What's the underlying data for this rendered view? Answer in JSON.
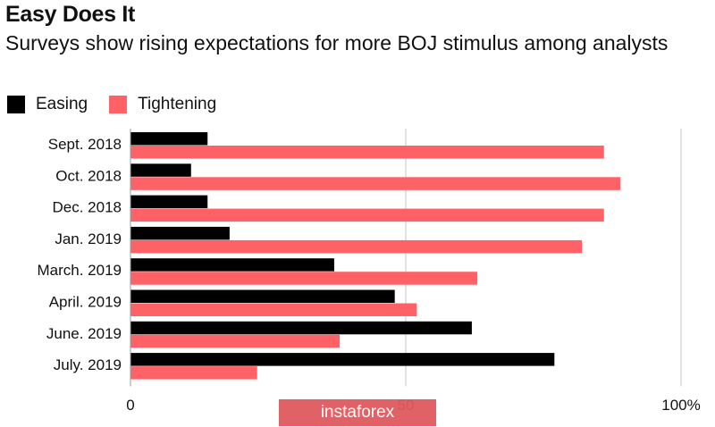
{
  "chart_data": {
    "type": "bar",
    "orientation": "horizontal",
    "title": "Easy Does It",
    "subtitle": "Surveys show rising expectations for more BOJ stimulus among analysts",
    "categories": [
      "Sept. 2018",
      "Oct. 2018",
      "Dec. 2018",
      "Jan. 2019",
      "March. 2019",
      "April. 2019",
      "June. 2019",
      "July. 2019"
    ],
    "series": [
      {
        "name": "Easing",
        "color": "#000000",
        "values": [
          14,
          11,
          14,
          18,
          37,
          48,
          62,
          77
        ]
      },
      {
        "name": "Tightening",
        "color": "#ff6266",
        "values": [
          86,
          89,
          86,
          82,
          63,
          52,
          38,
          23
        ]
      }
    ],
    "xlim": [
      0,
      100
    ],
    "x_ticks": [
      "0",
      "50",
      "100%"
    ],
    "grid": true,
    "legend_position": "top-left"
  },
  "watermark": "instaforex"
}
